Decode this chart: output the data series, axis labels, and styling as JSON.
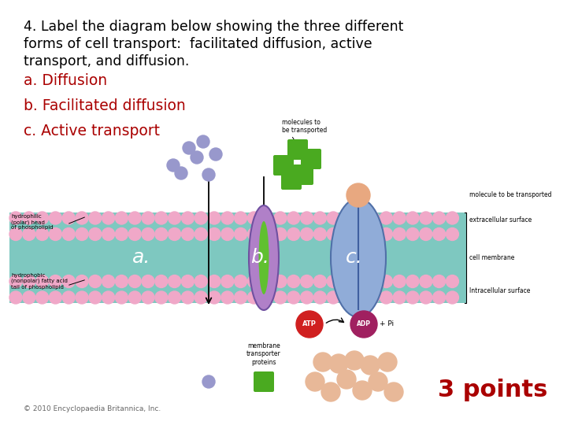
{
  "title_line1": "4. Label the diagram below showing the three different",
  "title_line2": "forms of cell transport:  facilitated diffusion, active",
  "title_line3": "transport, and diffusion.",
  "label_a": "a. Diffusion",
  "label_b": "b. Facilitated diffusion",
  "label_c": "c. Active transport",
  "points_text": "3 points",
  "copyright_text": "© 2010 Encyclopaedia Britannica, Inc.",
  "bg_color": "#ffffff",
  "title_color": "#000000",
  "label_color": "#aa0000",
  "points_color": "#aa0000",
  "title_fontsize": 12.5,
  "label_fontsize": 13.5,
  "points_fontsize": 22,
  "copyright_fontsize": 6.5
}
